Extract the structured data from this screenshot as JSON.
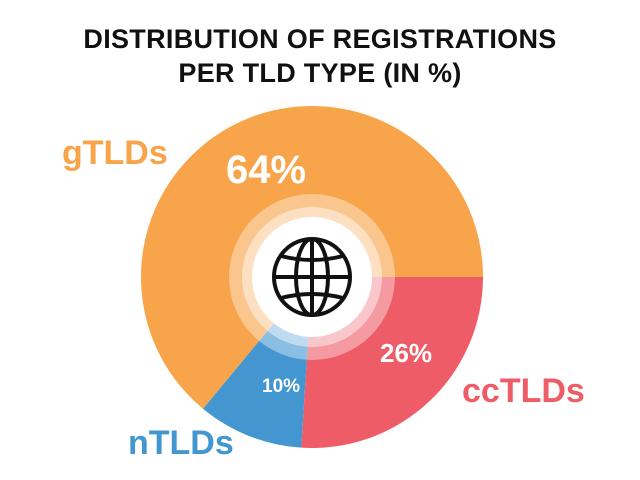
{
  "title_line1": "DISTRIBUTION OF REGISTRATIONS",
  "title_line2": "PER TLD TYPE (IN %)",
  "center_icon": "globe-icon",
  "chart_data": {
    "type": "pie",
    "title": "DISTRIBUTION OF REGISTRATIONS PER TLD TYPE (IN %)",
    "unit": "%",
    "slices": [
      {
        "label": "gTLDs",
        "value": 64,
        "value_label": "64%",
        "color": "#f7a44a"
      },
      {
        "label": "ccTLDs",
        "value": 26,
        "value_label": "26%",
        "color": "#ee5c67"
      },
      {
        "label": "nTLDs",
        "value": 10,
        "value_label": "10%",
        "color": "#4396d0"
      }
    ]
  }
}
